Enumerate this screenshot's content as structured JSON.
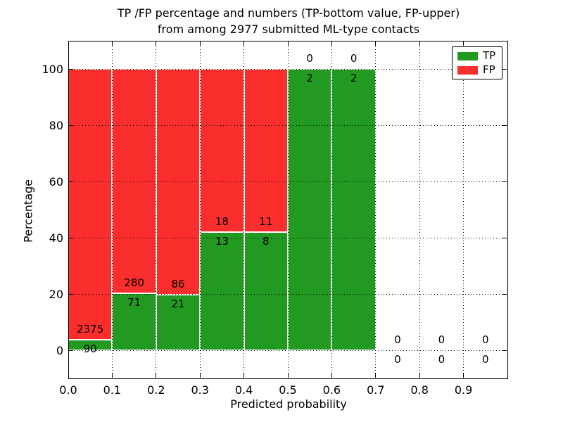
{
  "figure": {
    "title_line1": "TP /FP percentage and numbers (TP-bottom value, FP-upper)",
    "title_line2": "from among 2977 submitted ML-type contacts",
    "xlabel": "Predicted probability",
    "ylabel": "Percentage"
  },
  "legend": {
    "items": [
      {
        "label": "TP",
        "color": "#229a22"
      },
      {
        "label": "FP",
        "color": "#fb2e2e"
      }
    ]
  },
  "chart_data": {
    "type": "bar",
    "stacked": true,
    "normalized_to_percent": true,
    "title": "TP /FP percentage and numbers (TP-bottom value, FP-upper)\nfrom among 2977 submitted ML-type contacts",
    "xlabel": "Predicted probability",
    "ylabel": "Percentage",
    "xlim": [
      0.0,
      1.0
    ],
    "ylim": [
      -10,
      110
    ],
    "xtick_labels": [
      "0.0",
      "0.1",
      "0.2",
      "0.3",
      "0.4",
      "0.5",
      "0.6",
      "0.7",
      "0.8",
      "0.9"
    ],
    "ytick_values": [
      0,
      20,
      40,
      60,
      80,
      100
    ],
    "grid": true,
    "grid_style": "dotted",
    "legend_position": "upper right",
    "bin_edges": [
      0.0,
      0.1,
      0.2,
      0.3,
      0.4,
      0.5,
      0.6,
      0.7,
      0.8,
      0.9,
      1.0
    ],
    "series": [
      {
        "name": "TP",
        "color": "#229a22",
        "counts": [
          90,
          71,
          21,
          13,
          8,
          2,
          2,
          0,
          0,
          0
        ]
      },
      {
        "name": "FP",
        "color": "#fb2e2e",
        "counts": [
          2375,
          280,
          86,
          18,
          11,
          0,
          0,
          0,
          0,
          0
        ]
      }
    ],
    "tp_percent_by_bin": [
      3.7,
      20.2,
      19.6,
      41.9,
      42.1,
      100.0,
      100.0,
      0,
      0,
      0
    ],
    "total_contacts": 2977
  }
}
